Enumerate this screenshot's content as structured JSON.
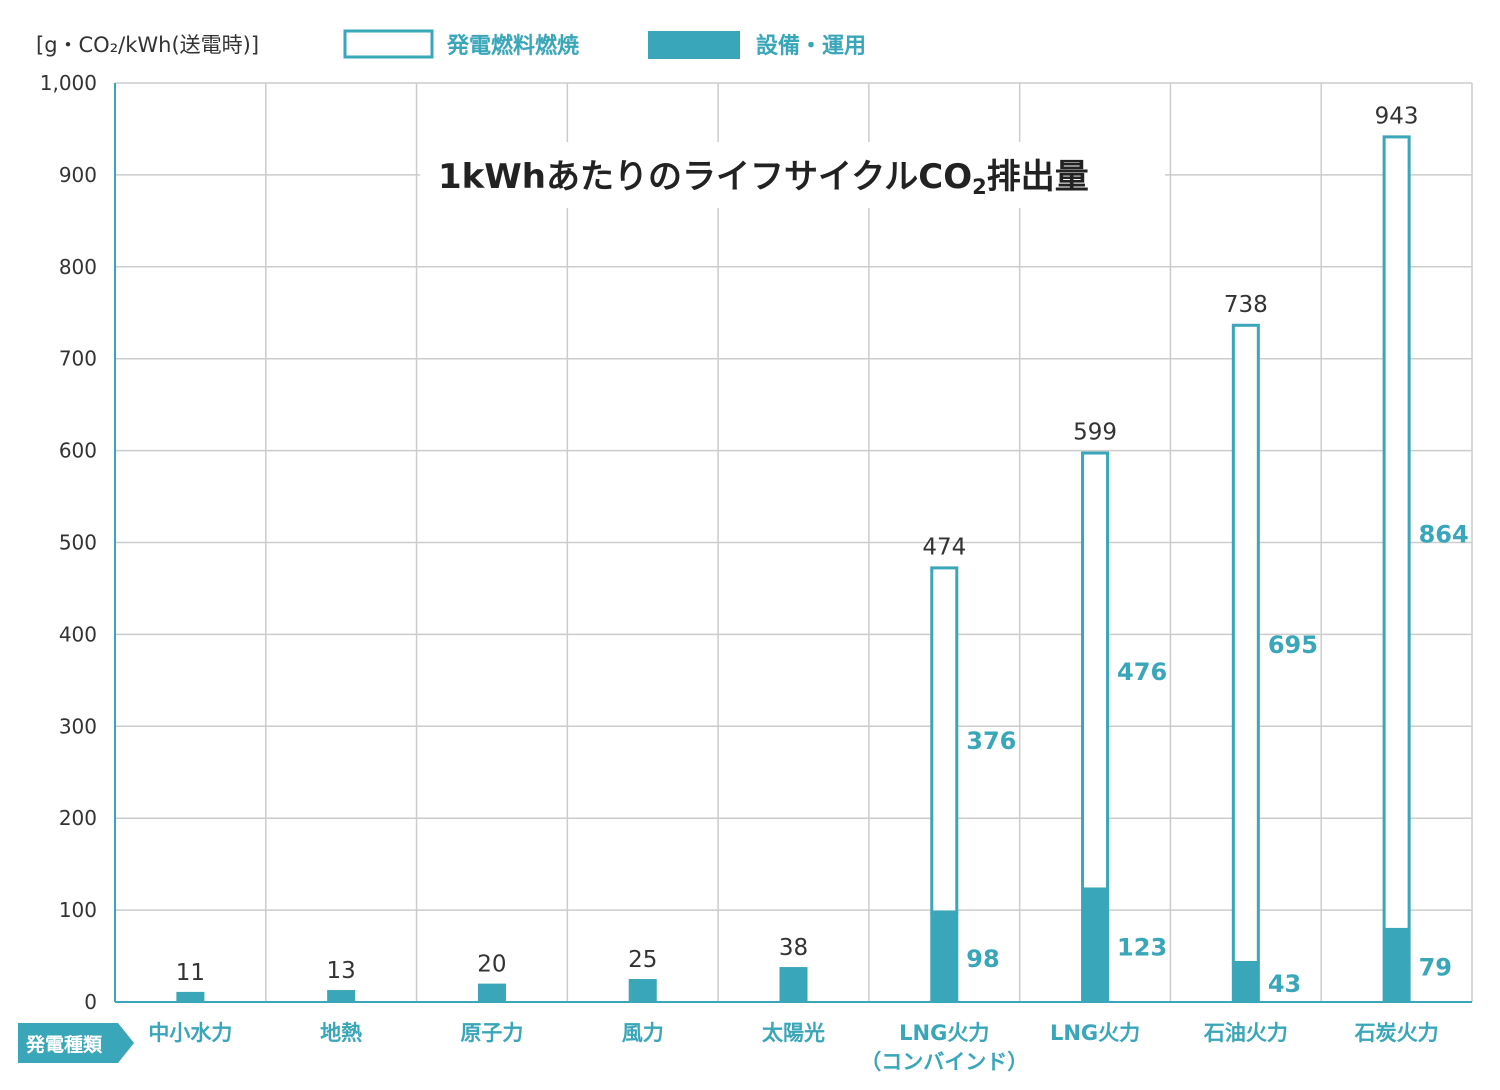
{
  "colors": {
    "accent": "#3aa6b9",
    "grid": "#cccccc",
    "text": "#333333",
    "bar_outline_fill": "#ffffff"
  },
  "chart_data": {
    "type": "bar",
    "stacked": true,
    "title": "1kWhあたりのライフサイクルCO",
    "title_subscript": "2",
    "title_suffix": "排出量",
    "ylabel": "[g・CO₂/kWh(送電時)]",
    "xlabel": "発電種類",
    "ylim": [
      0,
      1000
    ],
    "yticks": [
      0,
      100,
      200,
      300,
      400,
      500,
      600,
      700,
      800,
      900,
      1000
    ],
    "ytick_labels": [
      "0",
      "100",
      "200",
      "300",
      "400",
      "500",
      "600",
      "700",
      "800",
      "900",
      "1,000"
    ],
    "grid": true,
    "legend_position": "top",
    "categories": [
      [
        "中小水力"
      ],
      [
        "地熱"
      ],
      [
        "原子力"
      ],
      [
        "風力"
      ],
      [
        "太陽光"
      ],
      [
        "LNG火力",
        "（コンバインド）"
      ],
      [
        "LNG火力"
      ],
      [
        "石油火力"
      ],
      [
        "石炭火力"
      ]
    ],
    "series": [
      {
        "name": "設備・運用",
        "style": "filled",
        "values": [
          11,
          13,
          20,
          25,
          38,
          98,
          123,
          43,
          79
        ],
        "labels": [
          "",
          "",
          "",
          "",
          "",
          "98",
          "123",
          "43",
          "79"
        ]
      },
      {
        "name": "発電燃料燃焼",
        "style": "outline",
        "values": [
          0,
          0,
          0,
          0,
          0,
          376,
          476,
          695,
          864
        ],
        "labels": [
          "",
          "",
          "",
          "",
          "",
          "376",
          "476",
          "695",
          "864"
        ]
      }
    ],
    "totals": [
      11,
      13,
      20,
      25,
      38,
      474,
      599,
      738,
      943
    ]
  }
}
